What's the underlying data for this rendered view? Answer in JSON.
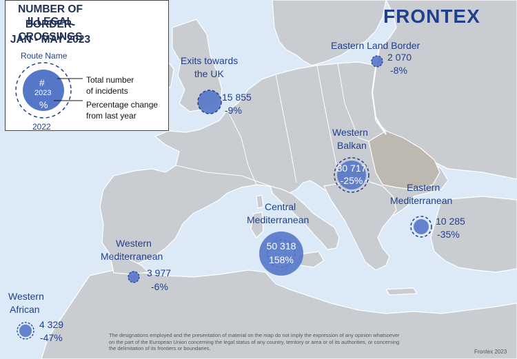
{
  "title": {
    "line1": "NUMBER OF ILLEGAL",
    "line2": "BORDER-CROSSINGS",
    "line3": "JAN - MAY 2023"
  },
  "brand": "FRONTEX",
  "legend": {
    "route_name": "Route Name",
    "hash": "#",
    "year_current": "2023",
    "percent_symbol": "%",
    "year_previous": "2022",
    "total_label_1": "Total number",
    "total_label_2": "of incidents",
    "pct_label_1": "Percentage change",
    "pct_label_2": "from last year"
  },
  "routes": [
    {
      "name_1": "Eastern Land Border",
      "name_2": "",
      "value": "2 070",
      "change": "-8%"
    },
    {
      "name_1": "Exits towards",
      "name_2": "the UK",
      "value": "15 855",
      "change": "-9%"
    },
    {
      "name_1": "Western",
      "name_2": "Balkan",
      "value": "30 717",
      "change": "-25%"
    },
    {
      "name_1": "Eastern",
      "name_2": "Mediterranean",
      "value": "10 285",
      "change": "-35%"
    },
    {
      "name_1": "Central",
      "name_2": "Mediterranean",
      "value": "50 318",
      "change": "158%"
    },
    {
      "name_1": "Western",
      "name_2": "Mediterranean",
      "value": "3 977",
      "change": "-6%"
    },
    {
      "name_1": "Western",
      "name_2": "African",
      "value": "4 329",
      "change": "-47%"
    }
  ],
  "disclaimer": {
    "line1": "The designations employed and the presentation of material on the map do not imply the expression of any opinion whatsoever",
    "line2": "on the part of the European Union concerning the legal status of any country, territory or area or of its authorities, or concerning",
    "line3": "the delimitation of its frontiers or boundaries."
  },
  "credit": "Frontex 2023",
  "colors": {
    "sea": "#dceaf7",
    "land": "#c9ccd1",
    "highlight_land": "#bdb8b0",
    "bubble": "#5577c8",
    "text": "#1f3f8f"
  }
}
